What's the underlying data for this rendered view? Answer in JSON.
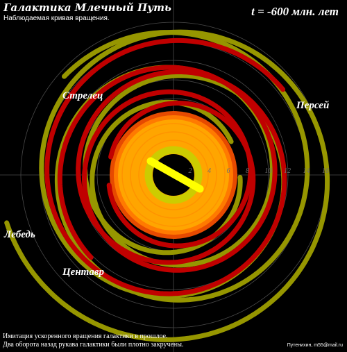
{
  "title": "Галактика Млечный Путь",
  "subtitle": "Наблюдаемая кривая вращения.",
  "time_label": "t = -600 млн. лет",
  "arms": {
    "sagittarius": "Стрелец",
    "perseus": "Персей",
    "cygnus": "Лебедь",
    "centaurus": "Центавр"
  },
  "radial_ticks": [
    "2",
    "4",
    "6",
    "8",
    "10",
    "12",
    "14",
    "16"
  ],
  "footer": {
    "line1": "Имитация ускоренного вращения галактики в прошлое.",
    "line2": "Два оборота назад рукава галактики были плотно закручены."
  },
  "credit": "Путенихин, m55@mail.ru",
  "colors": {
    "background": "#000000",
    "arm_red": "#c00000",
    "arm_olive": "#969600",
    "core_orange": "#ffa500",
    "inner_ring": "#cccc00",
    "bar": "#ffff00",
    "grid": "#4a4a4a"
  }
}
